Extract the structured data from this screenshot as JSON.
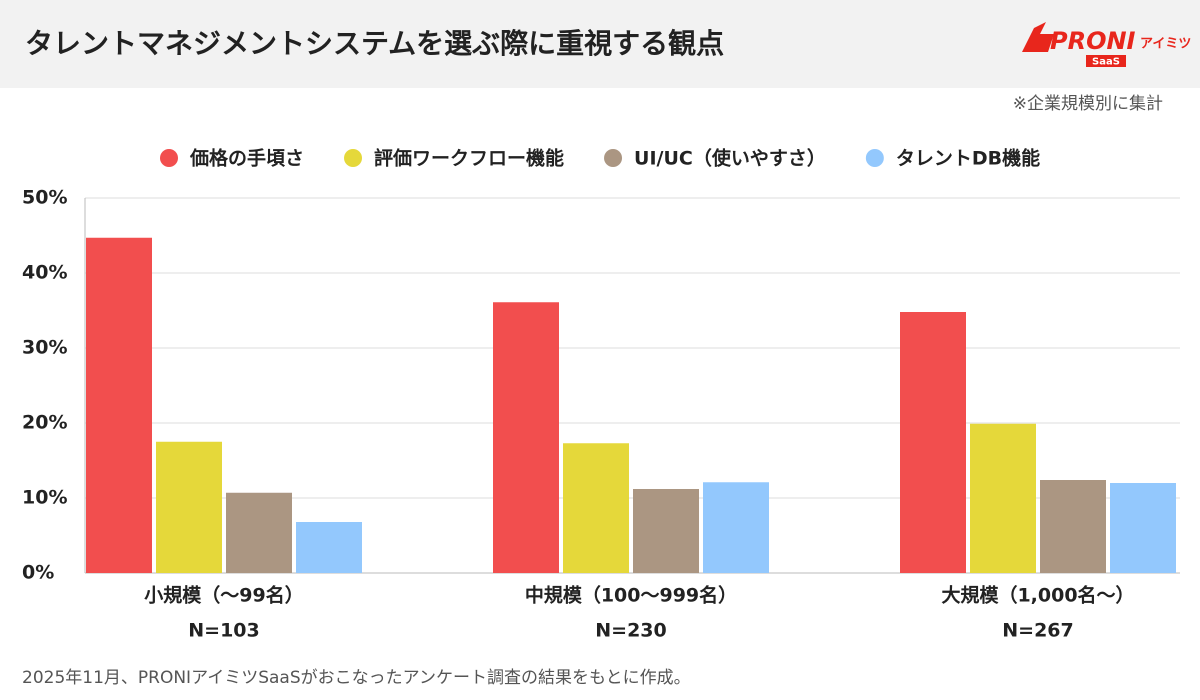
{
  "chart_data": {
    "type": "bar",
    "title": "タレントマネジメントシステムを選ぶ際に重視する観点",
    "note": "※企業規模別に集計",
    "source": "2025年11月、PRONIアイミツSaaSがおこなったアンケート調査の結果をもとに作成。",
    "logo": {
      "brand": "PRONI",
      "sub": "アイミツ",
      "tag": "SaaS"
    },
    "categories": [
      "小規模（〜99名）",
      "中規模（100〜999名）",
      "大規模（1,000名〜）"
    ],
    "sample_sizes": [
      "N=103",
      "N=230",
      "N=267"
    ],
    "series": [
      {
        "name": "価格の手頃さ",
        "color": "#f24e4e",
        "values": [
          44.7,
          36.1,
          34.8
        ]
      },
      {
        "name": "評価ワークフロー機能",
        "color": "#e5d83a",
        "values": [
          17.5,
          17.3,
          19.9
        ]
      },
      {
        "name": "UI/UC（使いやすさ）",
        "color": "#ab9682",
        "values": [
          10.7,
          11.2,
          12.4
        ]
      },
      {
        "name": "タレントDB機能",
        "color": "#93c8fd",
        "values": [
          6.8,
          12.1,
          12.0
        ]
      }
    ],
    "ylim": [
      0,
      50
    ],
    "yticks": [
      {
        "value": 0,
        "label": "0%"
      },
      {
        "value": 10,
        "label": "10%"
      },
      {
        "value": 20,
        "label": "20%"
      },
      {
        "value": 30,
        "label": "30%"
      },
      {
        "value": 40,
        "label": "40%"
      },
      {
        "value": 50,
        "label": "50%"
      }
    ],
    "grid": true
  }
}
